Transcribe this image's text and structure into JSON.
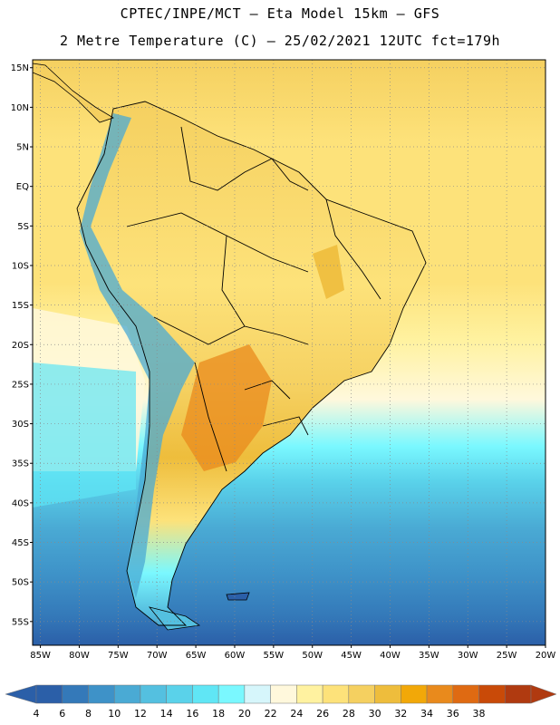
{
  "header": {
    "line1": "CPTEC/INPE/MCT –  Eta Model 15km – GFS",
    "line2": "2 Metre Temperature (C) – 25/02/2021 12UTC fct=179h"
  },
  "map": {
    "lat_labels": [
      "15N",
      "10N",
      "5N",
      "EQ",
      "5S",
      "10S",
      "15S",
      "20S",
      "25S",
      "30S",
      "35S",
      "40S",
      "45S",
      "50S",
      "55S"
    ],
    "lat_values": [
      15,
      10,
      5,
      0,
      -5,
      -10,
      -15,
      -20,
      -25,
      -30,
      -35,
      -40,
      -45,
      -50,
      -55
    ],
    "lon_labels": [
      "85W",
      "80W",
      "75W",
      "70W",
      "65W",
      "60W",
      "55W",
      "50W",
      "45W",
      "40W",
      "35W",
      "30W",
      "25W",
      "20W"
    ],
    "lon_values": [
      -85,
      -80,
      -75,
      -70,
      -65,
      -60,
      -55,
      -50,
      -45,
      -40,
      -35,
      -30,
      -25,
      -20
    ],
    "extent": {
      "lon_min": -86,
      "lon_max": -20,
      "lat_min": -58,
      "lat_max": 16
    }
  },
  "colorbar": {
    "labels": [
      "4",
      "6",
      "8",
      "10",
      "12",
      "14",
      "16",
      "18",
      "20",
      "22",
      "24",
      "26",
      "28",
      "30",
      "32",
      "34",
      "36",
      "38"
    ],
    "colors": [
      "#2b5fa8",
      "#3479b9",
      "#3e92c8",
      "#4aaad4",
      "#54c0e0",
      "#5ad2ea",
      "#60e6f5",
      "#7af8ff",
      "#d6f6fb",
      "#fff8dc",
      "#fff2a0",
      "#fde27a",
      "#f5d060",
      "#eebd3c",
      "#f2a808",
      "#e98a1c",
      "#df6a12",
      "#c94a08",
      "#b03a10"
    ]
  },
  "chart_data": {
    "type": "heatmap",
    "title": "2 Metre Temperature (C) – 25/02/2021 12UTC fct=179h",
    "xlabel": "",
    "ylabel": "",
    "x_ticks": [
      "85W",
      "80W",
      "75W",
      "70W",
      "65W",
      "60W",
      "55W",
      "50W",
      "45W",
      "40W",
      "35W",
      "30W",
      "25W",
      "20W"
    ],
    "y_ticks": [
      "15N",
      "10N",
      "5N",
      "EQ",
      "5S",
      "10S",
      "15S",
      "20S",
      "25S",
      "30S",
      "35S",
      "40S",
      "45S",
      "50S",
      "55S"
    ],
    "colorbar_levels": [
      4,
      6,
      8,
      10,
      12,
      14,
      16,
      18,
      20,
      22,
      24,
      26,
      28,
      30,
      32,
      34,
      36,
      38
    ],
    "grid": true
  }
}
